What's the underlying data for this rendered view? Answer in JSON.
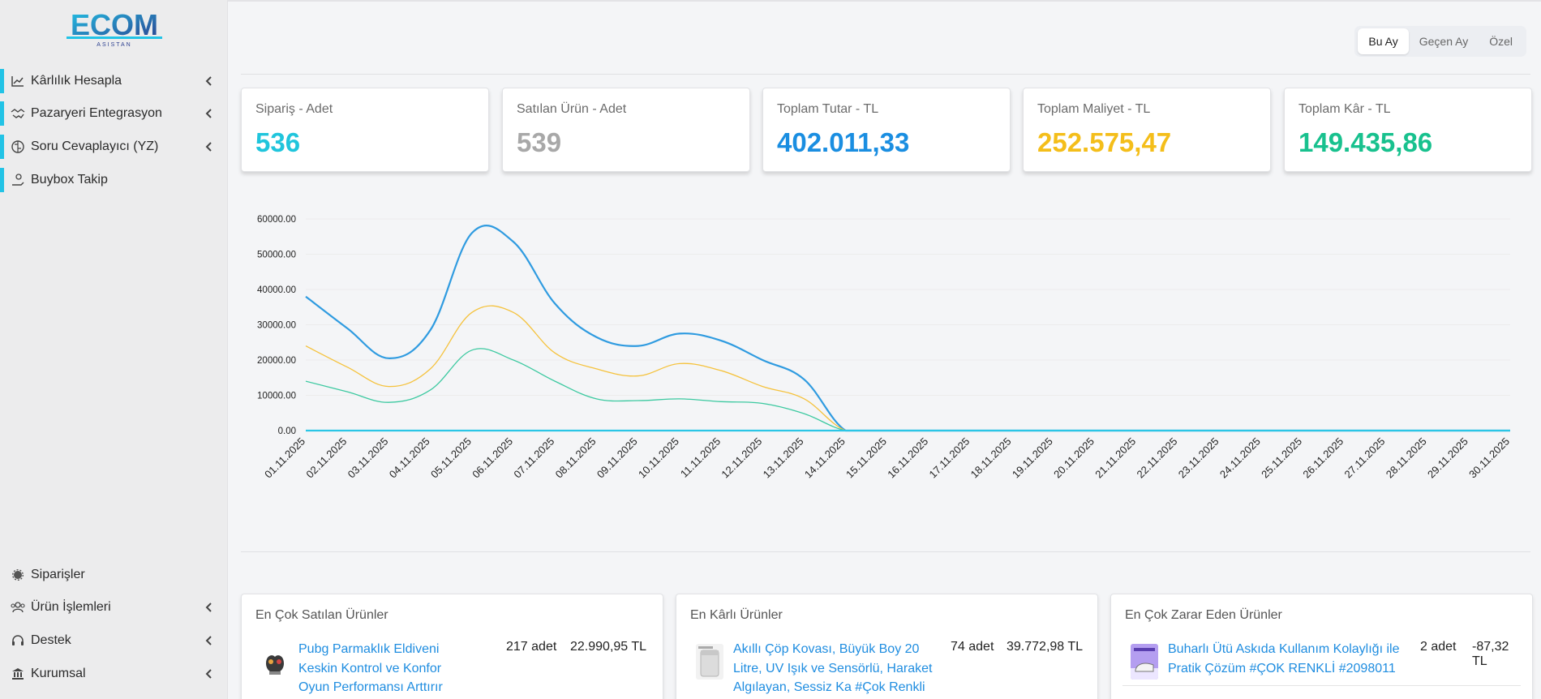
{
  "sidebar": {
    "logo_text": "ECOM",
    "logo_sub": "ASISTAN",
    "top_items": [
      {
        "label": "Kârlılık Hesapla",
        "icon": "chart-line-icon"
      },
      {
        "label": "Pazaryeri Entegrasyon",
        "icon": "handshake-icon"
      },
      {
        "label": "Soru Cevaplayıcı (YZ)",
        "icon": "brain-icon"
      },
      {
        "label": "Buybox Takip",
        "icon": "hand-coin-icon"
      }
    ],
    "bottom_items": [
      {
        "label": "Siparişler",
        "icon": "gear-icon"
      },
      {
        "label": "Ürün İşlemleri",
        "icon": "users-icon"
      },
      {
        "label": "Destek",
        "icon": "headset-icon"
      },
      {
        "label": "Kurumsal",
        "icon": "bank-icon"
      }
    ]
  },
  "period": {
    "this_month": "Bu Ay",
    "last_month": "Geçen Ay",
    "custom": "Özel"
  },
  "stats": [
    {
      "title": "Sipariş - Adet",
      "value": "536",
      "color": "#20c5dc"
    },
    {
      "title": "Satılan Ürün - Adet",
      "value": "539",
      "color": "#a8a8a8"
    },
    {
      "title": "Toplam Tutar - TL",
      "value": "402.011,33",
      "color": "#1a8ee1"
    },
    {
      "title": "Toplam Maliyet - TL",
      "value": "252.575,47",
      "color": "#f4be1a"
    },
    {
      "title": "Toplam Kâr - TL",
      "value": "149.435,86",
      "color": "#18c18e"
    }
  ],
  "chart_data": {
    "type": "line",
    "x": [
      "01.11.2025",
      "02.11.2025",
      "03.11.2025",
      "04.11.2025",
      "05.11.2025",
      "06.11.2025",
      "07.11.2025",
      "08.11.2025",
      "09.11.2025",
      "10.11.2025",
      "11.11.2025",
      "12.11.2025",
      "13.11.2025",
      "14.11.2025",
      "15.11.2025",
      "16.11.2025",
      "17.11.2025",
      "18.11.2025",
      "19.11.2025",
      "20.11.2025",
      "21.11.2025",
      "22.11.2025",
      "23.11.2025",
      "24.11.2025",
      "25.11.2025",
      "26.11.2025",
      "27.11.2025",
      "28.11.2025",
      "29.11.2025",
      "30.11.2025"
    ],
    "yticks": [
      "0.00",
      "10000.00",
      "20000.00",
      "30000.00",
      "40000.00",
      "50000.00",
      "60000.00"
    ],
    "ylim": [
      0,
      60000
    ],
    "grid": true,
    "series": [
      {
        "color": "#2f9be0",
        "width": 2.2,
        "values": [
          38000,
          29000,
          20500,
          28500,
          56000,
          53500,
          36000,
          26500,
          24000,
          27500,
          25500,
          20000,
          14500,
          0,
          0,
          0,
          0,
          0,
          0,
          0,
          0,
          0,
          0,
          0,
          0,
          0,
          0,
          0,
          0,
          0
        ]
      },
      {
        "color": "#f5c23c",
        "width": 1.3,
        "values": [
          24000,
          18000,
          12500,
          17500,
          33500,
          33500,
          22000,
          17500,
          15500,
          19000,
          17000,
          12500,
          9000,
          0,
          0,
          0,
          0,
          0,
          0,
          0,
          0,
          0,
          0,
          0,
          0,
          0,
          0,
          0,
          0,
          0
        ]
      },
      {
        "color": "#3cc9a0",
        "width": 1.3,
        "values": [
          14000,
          11000,
          8000,
          11500,
          22800,
          20000,
          14000,
          9000,
          8500,
          9000,
          8200,
          7700,
          4800,
          0,
          0,
          0,
          0,
          0,
          0,
          0,
          0,
          0,
          0,
          0,
          0,
          0,
          0,
          0,
          0,
          0
        ]
      },
      {
        "color": "#2bc6e6",
        "width": 2.2,
        "values": [
          0,
          0,
          0,
          0,
          0,
          0,
          0,
          0,
          0,
          0,
          0,
          0,
          0,
          0,
          0,
          0,
          0,
          0,
          0,
          0,
          0,
          0,
          0,
          0,
          0,
          0,
          0,
          0,
          0,
          0
        ]
      }
    ]
  },
  "panels": [
    {
      "title": "En Çok Satılan Ürünler",
      "items": [
        {
          "name": "Pubg Parmaklık Eldiveni Keskin Kontrol ve Konfor Oyun Performansı Arttırır Dayanıklı",
          "qty": "217 adet",
          "amount": "22.990,95 TL",
          "thumb": "gloves-thumbnail"
        }
      ]
    },
    {
      "title": "En Kârlı Ürünler",
      "items": [
        {
          "name": "Akıllı Çöp Kovası, Büyük Boy 20 Litre, UV Işık ve Sensörlü, Haraket Algılayan, Sessiz Ka #Çok Renkli",
          "qty": "74 adet",
          "amount": "39.772,98 TL",
          "thumb": "trash-bin-thumbnail"
        }
      ]
    },
    {
      "title": "En Çok Zarar Eden Ürünler",
      "items": [
        {
          "name": "Buharlı Ütü Askıda Kullanım Kolaylığı ile Pratik Çözüm #ÇOK RENKLİ #2098011",
          "qty": "2 adet",
          "amount": "-87,32 TL",
          "thumb": "steam-iron-thumbnail"
        }
      ]
    }
  ]
}
